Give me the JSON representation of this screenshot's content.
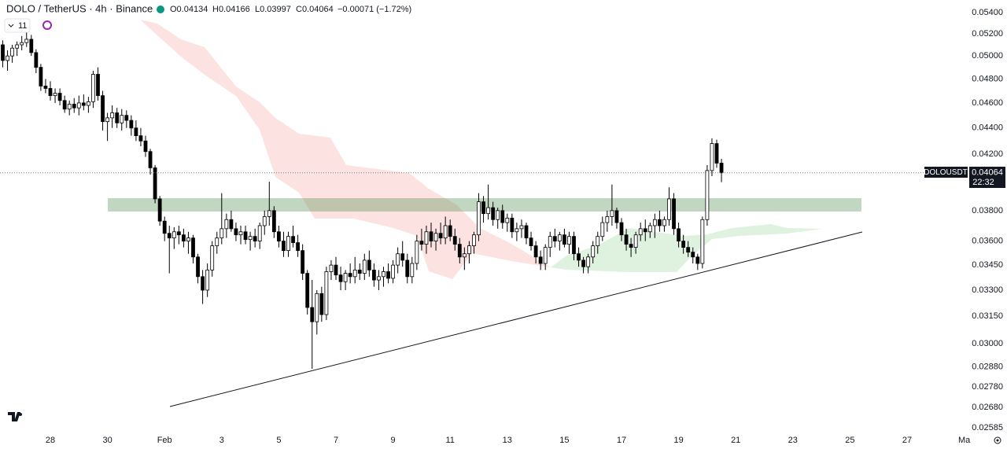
{
  "header": {
    "title": "DOLO / TetherUS · 4h · Binance",
    "open": "O0.04134",
    "high": "H0.04166",
    "low": "L0.03997",
    "close": "C0.04064",
    "change": "−0.00071 (−1.72%)",
    "indicators": "11"
  },
  "price_tag": {
    "symbol": "DOLOUSDT",
    "price": "0.04064",
    "countdown": "22:32"
  },
  "chart_data": {
    "type": "candlestick",
    "log": true,
    "grid": false,
    "up_color": "#ffffff",
    "down_color": "#000000",
    "outline_color": "#000000",
    "ylim": [
      0.02585,
      0.054
    ],
    "yticks": [
      {
        "value": 0.054,
        "label": "0.05400"
      },
      {
        "value": 0.052,
        "label": "0.05200"
      },
      {
        "value": 0.05,
        "label": "0.05000"
      },
      {
        "value": 0.048,
        "label": "0.04800"
      },
      {
        "value": 0.046,
        "label": "0.04600"
      },
      {
        "value": 0.044,
        "label": "0.04400"
      },
      {
        "value": 0.042,
        "label": "0.04200"
      },
      {
        "value": 0.038,
        "label": "0.03800"
      },
      {
        "value": 0.036,
        "label": "0.03600"
      },
      {
        "value": 0.0345,
        "label": "0.03450"
      },
      {
        "value": 0.033,
        "label": "0.03300"
      },
      {
        "value": 0.0315,
        "label": "0.03150"
      },
      {
        "value": 0.03,
        "label": "0.03000"
      },
      {
        "value": 0.0288,
        "label": "0.02880"
      },
      {
        "value": 0.0278,
        "label": "0.02780"
      },
      {
        "value": 0.0268,
        "label": "0.02680"
      },
      {
        "value": 0.02585,
        "label": "0.02585"
      }
    ],
    "categories": [
      null,
      null,
      null,
      null,
      null,
      null,
      null,
      null,
      null,
      null,
      "28",
      null,
      null,
      null,
      null,
      null,
      null,
      null,
      null,
      null,
      null,
      null,
      "30",
      null,
      null,
      null,
      null,
      null,
      null,
      null,
      null,
      null,
      null,
      null,
      "Feb",
      null,
      null,
      null,
      null,
      null,
      null,
      null,
      null,
      null,
      null,
      null,
      "3",
      null,
      null,
      null,
      null,
      null,
      null,
      null,
      null,
      null,
      null,
      null,
      "5",
      null,
      null,
      null,
      null,
      null,
      null,
      null,
      null,
      null,
      null,
      null,
      "7",
      null,
      null,
      null,
      null,
      null,
      null,
      null,
      null,
      null,
      null,
      null,
      "9",
      null,
      null,
      null,
      null,
      null,
      null,
      null,
      null,
      null,
      null,
      null,
      "11",
      null,
      null,
      null,
      null,
      null,
      null,
      null,
      null,
      null,
      null,
      null,
      "13",
      null,
      null,
      null,
      null,
      null,
      null,
      null,
      null,
      null,
      null,
      null,
      "15",
      null,
      null,
      null,
      null,
      null,
      null,
      null,
      null,
      null,
      null,
      null,
      "17",
      null,
      null,
      null,
      null,
      null,
      null,
      null,
      null,
      null,
      null,
      null,
      "19",
      null,
      null,
      null,
      null,
      null,
      null,
      null,
      null,
      null,
      null,
      null,
      "21",
      null,
      null,
      null,
      null,
      null,
      null,
      null,
      null,
      null,
      null,
      null,
      "23",
      null,
      null,
      null,
      null,
      null,
      null,
      null,
      null,
      null,
      null,
      null,
      "25",
      null,
      null,
      null,
      null,
      null,
      null,
      null,
      null,
      null,
      null,
      null,
      "27",
      null,
      null,
      null,
      null,
      null,
      null,
      null,
      null,
      null,
      null,
      null,
      "Ma"
    ],
    "ohlc": [
      [
        0.051,
        0.0514,
        0.049,
        0.0496
      ],
      [
        0.0496,
        0.0505,
        0.0487,
        0.05
      ],
      [
        0.05,
        0.051,
        0.0494,
        0.0507
      ],
      [
        0.0507,
        0.0513,
        0.05,
        0.051
      ],
      [
        0.051,
        0.0518,
        0.0505,
        0.0512
      ],
      [
        0.0512,
        0.0522,
        0.0508,
        0.0515
      ],
      [
        0.0515,
        0.0519,
        0.05,
        0.0503
      ],
      [
        0.0503,
        0.0506,
        0.0485,
        0.049
      ],
      [
        0.049,
        0.0493,
        0.047,
        0.0474
      ],
      [
        0.0474,
        0.048,
        0.0468,
        0.0472
      ],
      [
        0.0472,
        0.0478,
        0.0462,
        0.0466
      ],
      [
        0.0466,
        0.0472,
        0.046,
        0.0468
      ],
      [
        0.0468,
        0.0472,
        0.0458,
        0.0462
      ],
      [
        0.0462,
        0.0466,
        0.0452,
        0.0455
      ],
      [
        0.0455,
        0.0462,
        0.045,
        0.0459
      ],
      [
        0.0459,
        0.0464,
        0.0452,
        0.0456
      ],
      [
        0.0456,
        0.0466,
        0.045,
        0.046
      ],
      [
        0.046,
        0.0467,
        0.0454,
        0.0458
      ],
      [
        0.0458,
        0.0465,
        0.0452,
        0.0461
      ],
      [
        0.0461,
        0.0487,
        0.0456,
        0.0484
      ],
      [
        0.0484,
        0.049,
        0.0462,
        0.0466
      ],
      [
        0.0466,
        0.047,
        0.0438,
        0.0445
      ],
      [
        0.0445,
        0.0452,
        0.043,
        0.0448
      ],
      [
        0.0448,
        0.0458,
        0.044,
        0.0452
      ],
      [
        0.0452,
        0.0456,
        0.044,
        0.0444
      ],
      [
        0.0444,
        0.0455,
        0.0438,
        0.045
      ],
      [
        0.045,
        0.0454,
        0.044,
        0.0446
      ],
      [
        0.0446,
        0.045,
        0.0434,
        0.044
      ],
      [
        0.044,
        0.0446,
        0.043,
        0.0434
      ],
      [
        0.0434,
        0.044,
        0.0426,
        0.043
      ],
      [
        0.043,
        0.0434,
        0.0418,
        0.0422
      ],
      [
        0.0422,
        0.0424,
        0.0405,
        0.041
      ],
      [
        0.041,
        0.0412,
        0.0385,
        0.0388
      ],
      [
        0.0388,
        0.039,
        0.037,
        0.0373
      ],
      [
        0.0373,
        0.0376,
        0.036,
        0.0365
      ],
      [
        0.0365,
        0.037,
        0.034,
        0.0362
      ],
      [
        0.0362,
        0.0369,
        0.0355,
        0.0366
      ],
      [
        0.0366,
        0.037,
        0.0358,
        0.0364
      ],
      [
        0.0364,
        0.0368,
        0.0356,
        0.036
      ],
      [
        0.036,
        0.0366,
        0.0352,
        0.0362
      ],
      [
        0.0362,
        0.0364,
        0.0346,
        0.035
      ],
      [
        0.035,
        0.0352,
        0.0334,
        0.0338
      ],
      [
        0.0338,
        0.0342,
        0.0322,
        0.033
      ],
      [
        0.033,
        0.0346,
        0.0326,
        0.0342
      ],
      [
        0.0342,
        0.036,
        0.0338,
        0.0357
      ],
      [
        0.0357,
        0.0366,
        0.0352,
        0.0362
      ],
      [
        0.0362,
        0.0392,
        0.0358,
        0.0368
      ],
      [
        0.0368,
        0.0378,
        0.0362,
        0.0374
      ],
      [
        0.0374,
        0.038,
        0.0366,
        0.0368
      ],
      [
        0.0368,
        0.0372,
        0.036,
        0.0364
      ],
      [
        0.0364,
        0.037,
        0.0358,
        0.0366
      ],
      [
        0.0366,
        0.037,
        0.0358,
        0.0361
      ],
      [
        0.0361,
        0.0366,
        0.0354,
        0.0363
      ],
      [
        0.0363,
        0.0368,
        0.0356,
        0.036
      ],
      [
        0.036,
        0.0372,
        0.0355,
        0.037
      ],
      [
        0.037,
        0.038,
        0.0364,
        0.0376
      ],
      [
        0.0376,
        0.04,
        0.037,
        0.038
      ],
      [
        0.038,
        0.0383,
        0.0362,
        0.0366
      ],
      [
        0.0366,
        0.037,
        0.0356,
        0.036
      ],
      [
        0.036,
        0.0366,
        0.035,
        0.0354
      ],
      [
        0.0354,
        0.0366,
        0.035,
        0.0363
      ],
      [
        0.0363,
        0.037,
        0.0356,
        0.0359
      ],
      [
        0.0359,
        0.0364,
        0.035,
        0.0354
      ],
      [
        0.0354,
        0.0358,
        0.0336,
        0.034
      ],
      [
        0.034,
        0.0342,
        0.0316,
        0.032
      ],
      [
        0.032,
        0.0336,
        0.0287,
        0.0312
      ],
      [
        0.0312,
        0.033,
        0.0305,
        0.0328
      ],
      [
        0.0328,
        0.0332,
        0.0312,
        0.0316
      ],
      [
        0.0316,
        0.0344,
        0.0313,
        0.0341
      ],
      [
        0.0341,
        0.0348,
        0.0336,
        0.0345
      ],
      [
        0.0345,
        0.035,
        0.0336,
        0.0339
      ],
      [
        0.0339,
        0.0344,
        0.033,
        0.0335
      ],
      [
        0.0335,
        0.0342,
        0.033,
        0.034
      ],
      [
        0.034,
        0.0346,
        0.0334,
        0.0338
      ],
      [
        0.0338,
        0.035,
        0.0334,
        0.0342
      ],
      [
        0.0342,
        0.0346,
        0.0336,
        0.034
      ],
      [
        0.034,
        0.0352,
        0.0336,
        0.0348
      ],
      [
        0.0348,
        0.0354,
        0.0338,
        0.0342
      ],
      [
        0.0342,
        0.0346,
        0.0332,
        0.0336
      ],
      [
        0.0336,
        0.0342,
        0.033,
        0.0338
      ],
      [
        0.0338,
        0.0344,
        0.0332,
        0.0341
      ],
      [
        0.0341,
        0.0346,
        0.0334,
        0.0337
      ],
      [
        0.0337,
        0.0348,
        0.0334,
        0.0345
      ],
      [
        0.0345,
        0.0356,
        0.034,
        0.0352
      ],
      [
        0.0352,
        0.036,
        0.0344,
        0.0348
      ],
      [
        0.0348,
        0.0352,
        0.0334,
        0.0338
      ],
      [
        0.0338,
        0.035,
        0.0334,
        0.0346
      ],
      [
        0.0346,
        0.0364,
        0.0342,
        0.036
      ],
      [
        0.036,
        0.0368,
        0.0354,
        0.0358
      ],
      [
        0.0358,
        0.037,
        0.0352,
        0.0366
      ],
      [
        0.0366,
        0.0372,
        0.0356,
        0.036
      ],
      [
        0.036,
        0.0368,
        0.0354,
        0.0365
      ],
      [
        0.0365,
        0.0372,
        0.0358,
        0.0362
      ],
      [
        0.0362,
        0.0376,
        0.0358,
        0.037
      ],
      [
        0.037,
        0.0374,
        0.036,
        0.0363
      ],
      [
        0.0363,
        0.0368,
        0.0354,
        0.0358
      ],
      [
        0.0358,
        0.0362,
        0.0346,
        0.035
      ],
      [
        0.035,
        0.0356,
        0.0342,
        0.0352
      ],
      [
        0.0352,
        0.036,
        0.0346,
        0.0357
      ],
      [
        0.0357,
        0.0366,
        0.0352,
        0.0364
      ],
      [
        0.0364,
        0.0392,
        0.036,
        0.0386
      ],
      [
        0.0386,
        0.039,
        0.0372,
        0.0378
      ],
      [
        0.0378,
        0.0398,
        0.0374,
        0.0382
      ],
      [
        0.0382,
        0.0386,
        0.037,
        0.0374
      ],
      [
        0.0374,
        0.0382,
        0.0368,
        0.038
      ],
      [
        0.038,
        0.0384,
        0.0368,
        0.0372
      ],
      [
        0.0372,
        0.0378,
        0.0366,
        0.0375
      ],
      [
        0.0375,
        0.0378,
        0.0362,
        0.0366
      ],
      [
        0.0366,
        0.0372,
        0.036,
        0.0368
      ],
      [
        0.0368,
        0.0374,
        0.0362,
        0.037
      ],
      [
        0.037,
        0.0372,
        0.0358,
        0.0362
      ],
      [
        0.0362,
        0.0366,
        0.0354,
        0.0357
      ],
      [
        0.0357,
        0.036,
        0.0346,
        0.035
      ],
      [
        0.035,
        0.0354,
        0.0342,
        0.0346
      ],
      [
        0.0346,
        0.0358,
        0.0342,
        0.0356
      ],
      [
        0.0356,
        0.0366,
        0.035,
        0.0363
      ],
      [
        0.0363,
        0.0368,
        0.0356,
        0.036
      ],
      [
        0.036,
        0.0366,
        0.0354,
        0.0364
      ],
      [
        0.0364,
        0.0368,
        0.0356,
        0.0358
      ],
      [
        0.0358,
        0.0366,
        0.0352,
        0.0363
      ],
      [
        0.0363,
        0.0366,
        0.0348,
        0.0352
      ],
      [
        0.0352,
        0.0356,
        0.0344,
        0.0348
      ],
      [
        0.0348,
        0.035,
        0.034,
        0.0344
      ],
      [
        0.0344,
        0.0352,
        0.034,
        0.035
      ],
      [
        0.035,
        0.036,
        0.0346,
        0.0357
      ],
      [
        0.0357,
        0.0366,
        0.0352,
        0.0363
      ],
      [
        0.0363,
        0.0376,
        0.036,
        0.0372
      ],
      [
        0.0372,
        0.038,
        0.0366,
        0.0376
      ],
      [
        0.0376,
        0.0398,
        0.037,
        0.038
      ],
      [
        0.038,
        0.0382,
        0.0368,
        0.0372
      ],
      [
        0.0372,
        0.0375,
        0.036,
        0.0364
      ],
      [
        0.0364,
        0.0368,
        0.0354,
        0.0358
      ],
      [
        0.0358,
        0.0362,
        0.035,
        0.0356
      ],
      [
        0.0356,
        0.0366,
        0.0352,
        0.0364
      ],
      [
        0.0364,
        0.0372,
        0.036,
        0.0368
      ],
      [
        0.0368,
        0.0374,
        0.036,
        0.0366
      ],
      [
        0.0366,
        0.0372,
        0.0362,
        0.037
      ],
      [
        0.037,
        0.0378,
        0.0362,
        0.0374
      ],
      [
        0.0374,
        0.038,
        0.0366,
        0.037
      ],
      [
        0.037,
        0.0376,
        0.0366,
        0.0374
      ],
      [
        0.0374,
        0.0396,
        0.037,
        0.0388
      ],
      [
        0.0388,
        0.0392,
        0.0364,
        0.0368
      ],
      [
        0.0368,
        0.0372,
        0.0356,
        0.036
      ],
      [
        0.036,
        0.0364,
        0.0352,
        0.0356
      ],
      [
        0.0356,
        0.036,
        0.035,
        0.0353
      ],
      [
        0.0353,
        0.0356,
        0.0346,
        0.035
      ],
      [
        0.035,
        0.0352,
        0.0342,
        0.0346
      ],
      [
        0.0346,
        0.0376,
        0.0343,
        0.0374
      ],
      [
        0.0374,
        0.0412,
        0.037,
        0.0408
      ],
      [
        0.0408,
        0.0432,
        0.0404,
        0.0428
      ],
      [
        0.0428,
        0.0431,
        0.041,
        0.04134
      ],
      [
        0.04134,
        0.04166,
        0.03997,
        0.04064
      ],
      null,
      null,
      null,
      null,
      null,
      null,
      null,
      null,
      null,
      null,
      null,
      null,
      null,
      null,
      null,
      null,
      null,
      null,
      null,
      null,
      null,
      null,
      null,
      null,
      null,
      null,
      null,
      null,
      null,
      null,
      null,
      null,
      null,
      null,
      null,
      null,
      null,
      null,
      null,
      null,
      null,
      null,
      null,
      null,
      null,
      null,
      null,
      null,
      null,
      null,
      null
    ]
  }
}
